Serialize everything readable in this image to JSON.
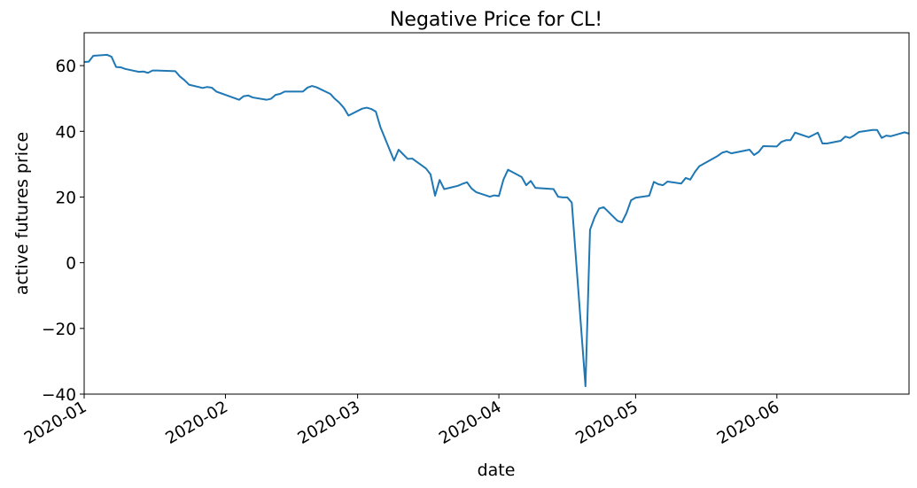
{
  "chart_data": {
    "type": "line",
    "title": "Negative Price for CL!",
    "xlabel": "date",
    "ylabel": "active futures price",
    "xlim": [
      "2020-01-01",
      "2020-06-30"
    ],
    "ylim": [
      -40,
      70
    ],
    "y_ticks": [
      -40,
      -20,
      0,
      20,
      40,
      60
    ],
    "y_tick_labels": [
      "−40",
      "−20",
      "0",
      "20",
      "40",
      "60"
    ],
    "x_ticks": [
      "2020-01-01",
      "2020-02-01",
      "2020-03-01",
      "2020-04-01",
      "2020-05-01",
      "2020-06-01"
    ],
    "x_tick_labels": [
      "2020-01",
      "2020-02",
      "2020-03",
      "2020-04",
      "2020-05",
      "2020-06"
    ],
    "grid": false,
    "line_color": "#1f77b4",
    "series": [
      {
        "x": [
          "2020-01-01",
          "2020-01-02",
          "2020-01-03",
          "2020-01-06",
          "2020-01-07",
          "2020-01-08",
          "2020-01-09",
          "2020-01-10",
          "2020-01-13",
          "2020-01-14",
          "2020-01-15",
          "2020-01-16",
          "2020-01-17",
          "2020-01-21",
          "2020-01-22",
          "2020-01-23",
          "2020-01-24",
          "2020-01-27",
          "2020-01-28",
          "2020-01-29",
          "2020-01-30",
          "2020-01-31",
          "2020-02-03",
          "2020-02-04",
          "2020-02-05",
          "2020-02-06",
          "2020-02-07",
          "2020-02-10",
          "2020-02-11",
          "2020-02-12",
          "2020-02-13",
          "2020-02-14",
          "2020-02-18",
          "2020-02-19",
          "2020-02-20",
          "2020-02-21",
          "2020-02-24",
          "2020-02-25",
          "2020-02-26",
          "2020-02-27",
          "2020-02-28",
          "2020-03-02",
          "2020-03-03",
          "2020-03-04",
          "2020-03-05",
          "2020-03-06",
          "2020-03-09",
          "2020-03-10",
          "2020-03-11",
          "2020-03-12",
          "2020-03-13",
          "2020-03-16",
          "2020-03-17",
          "2020-03-18",
          "2020-03-19",
          "2020-03-20",
          "2020-03-23",
          "2020-03-24",
          "2020-03-25",
          "2020-03-26",
          "2020-03-27",
          "2020-03-30",
          "2020-03-31",
          "2020-04-01",
          "2020-04-02",
          "2020-04-03",
          "2020-04-06",
          "2020-04-07",
          "2020-04-08",
          "2020-04-09",
          "2020-04-13",
          "2020-04-14",
          "2020-04-15",
          "2020-04-16",
          "2020-04-17",
          "2020-04-20",
          "2020-04-21",
          "2020-04-22",
          "2020-04-23",
          "2020-04-24",
          "2020-04-27",
          "2020-04-28",
          "2020-04-29",
          "2020-04-30",
          "2020-05-01",
          "2020-05-04",
          "2020-05-05",
          "2020-05-06",
          "2020-05-07",
          "2020-05-08",
          "2020-05-11",
          "2020-05-12",
          "2020-05-13",
          "2020-05-14",
          "2020-05-15",
          "2020-05-18",
          "2020-05-19",
          "2020-05-20",
          "2020-05-21",
          "2020-05-22",
          "2020-05-26",
          "2020-05-27",
          "2020-05-28",
          "2020-05-29",
          "2020-06-01",
          "2020-06-02",
          "2020-06-03",
          "2020-06-04",
          "2020-06-05",
          "2020-06-08",
          "2020-06-09",
          "2020-06-10",
          "2020-06-11",
          "2020-06-12",
          "2020-06-15",
          "2020-06-16",
          "2020-06-17",
          "2020-06-18",
          "2020-06-19",
          "2020-06-22",
          "2020-06-23",
          "2020-06-24",
          "2020-06-25",
          "2020-06-26",
          "2020-06-29",
          "2020-06-30"
        ],
        "values": [
          61.1,
          61.2,
          63.0,
          63.3,
          62.7,
          59.6,
          59.5,
          59.0,
          58.1,
          58.2,
          57.8,
          58.5,
          58.5,
          58.3,
          56.7,
          55.6,
          54.2,
          53.2,
          53.5,
          53.3,
          52.1,
          51.6,
          50.1,
          49.6,
          50.7,
          50.9,
          50.3,
          49.6,
          49.9,
          51.1,
          51.4,
          52.1,
          52.1,
          53.3,
          53.8,
          53.4,
          51.4,
          49.9,
          48.7,
          47.1,
          44.8,
          46.9,
          47.2,
          46.8,
          46.0,
          41.3,
          31.1,
          34.4,
          33.0,
          31.6,
          31.7,
          28.7,
          26.9,
          20.4,
          25.2,
          22.4,
          23.4,
          24.0,
          24.5,
          22.6,
          21.5,
          20.1,
          20.5,
          20.3,
          25.3,
          28.3,
          26.1,
          23.6,
          24.9,
          22.8,
          22.4,
          20.1,
          19.9,
          19.9,
          18.3,
          -37.6,
          10.0,
          13.8,
          16.5,
          16.9,
          12.8,
          12.3,
          15.1,
          19.0,
          19.8,
          20.4,
          24.6,
          23.9,
          23.6,
          24.7,
          24.1,
          25.8,
          25.3,
          27.6,
          29.4,
          31.7,
          32.5,
          33.5,
          33.9,
          33.3,
          34.4,
          32.8,
          33.7,
          35.5,
          35.4,
          36.8,
          37.3,
          37.3,
          39.6,
          38.2,
          38.9,
          39.6,
          36.3,
          36.3,
          37.1,
          38.4,
          38.0,
          38.8,
          39.8,
          40.4,
          40.4,
          38.0,
          38.7,
          38.5,
          39.7,
          39.3
        ]
      }
    ]
  }
}
